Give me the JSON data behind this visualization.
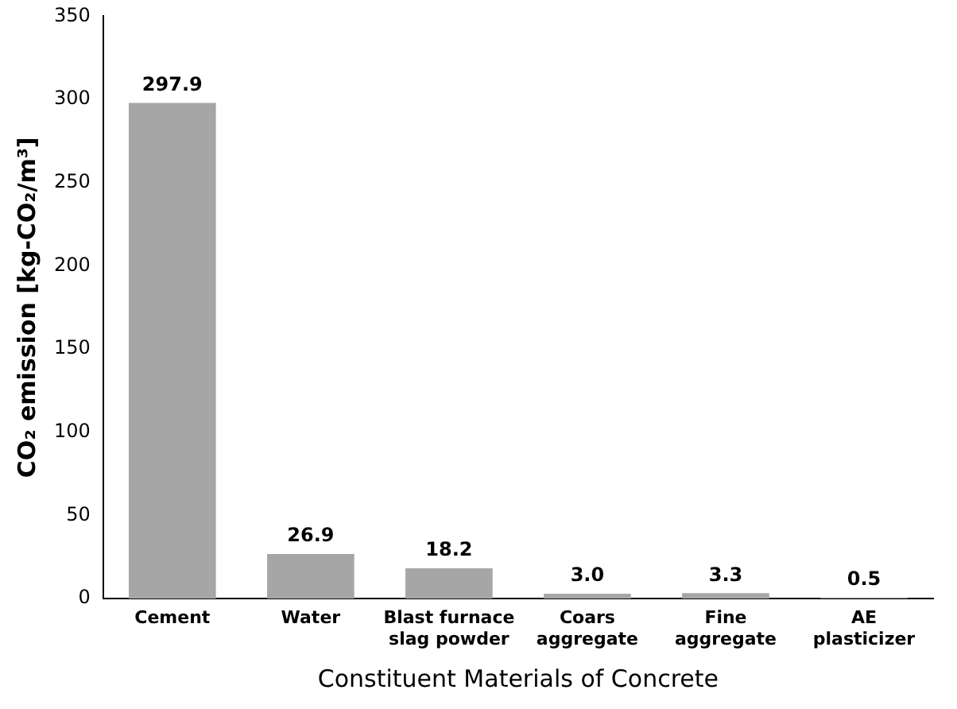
{
  "chart_data": {
    "type": "bar",
    "xlabel": "Constituent Materials of Concrete",
    "ylabel": "CO₂ emission [kg-CO₂/m³]",
    "categories": [
      "Cement",
      "Water",
      "Blast furnace\nslag powder",
      "Coars\naggregate",
      "Fine\naggregate",
      "AE\nplasticizer"
    ],
    "values": [
      297.9,
      26.9,
      18.2,
      3.0,
      3.3,
      0.5
    ],
    "value_labels": [
      "297.9",
      "26.9",
      "18.2",
      "3.0",
      "3.3",
      "0.5"
    ],
    "color": "#a6a6a6",
    "ylim": [
      0,
      350
    ],
    "yticks": [
      0,
      50,
      100,
      150,
      200,
      250,
      300,
      350
    ],
    "grid": false,
    "legend": false
  }
}
